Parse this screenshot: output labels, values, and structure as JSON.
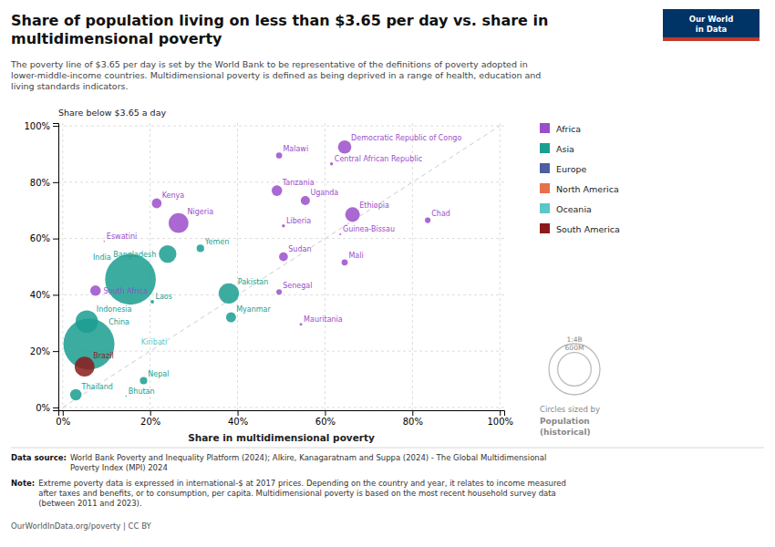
{
  "chart_data": {
    "type": "scatter",
    "title": "Share of population living on less than $3.65 per day vs. share in\nmultidimensional poverty",
    "subtitle": "The poverty line of $3.65 per day is set by the World Bank to be representative of the definitions of poverty adopted in\nlower-middle-income countries. Multidimensional poverty is defined as being deprived in a range of health, education and\nliving standards indicators.",
    "xlabel": "Share in multidimensional poverty",
    "ylabel": "Share below $3.65 a day",
    "xlim": [
      -0.01,
      1.01
    ],
    "ylim": [
      -0.01,
      1.01
    ],
    "xticks": [
      {
        "value": 0,
        "label": "0%"
      },
      {
        "value": 0.2,
        "label": "20%"
      },
      {
        "value": 0.4,
        "label": "40%"
      },
      {
        "value": 0.6,
        "label": "60%"
      },
      {
        "value": 0.8,
        "label": "80%"
      },
      {
        "value": 1,
        "label": "100%"
      }
    ],
    "yticks": [
      {
        "value": 0,
        "label": "0%"
      },
      {
        "value": 0.2,
        "label": "20%"
      },
      {
        "value": 0.4,
        "label": "40%"
      },
      {
        "value": 0.6,
        "label": "60%"
      },
      {
        "value": 0.8,
        "label": "80%"
      },
      {
        "value": 1,
        "label": "100%"
      }
    ],
    "grid": true,
    "legend": "right",
    "series": [
      {
        "name": "Africa",
        "color": "#9b4dca",
        "labels": [
          "Democratic Republic of Congo",
          "Central African Republic",
          "Malawi",
          "Tanzania",
          "Uganda",
          "Ethiopia",
          "Chad",
          "Kenya",
          "Nigeria",
          "Liberia",
          "Guinea-Bissau",
          "Sudan",
          "Mali",
          "Eswatini",
          "Senegal",
          "Mauritania",
          "South Africa"
        ],
        "x": [
          0.645,
          0.615,
          0.495,
          0.49,
          0.555,
          0.663,
          0.835,
          0.215,
          0.265,
          0.505,
          0.635,
          0.505,
          0.645,
          0.095,
          0.495,
          0.545,
          0.075
        ],
        "y": [
          0.925,
          0.865,
          0.895,
          0.77,
          0.735,
          0.685,
          0.665,
          0.725,
          0.655,
          0.645,
          0.615,
          0.535,
          0.515,
          0.59,
          0.41,
          0.295,
          0.415
        ],
        "size": [
          95,
          5,
          20,
          60,
          45,
          115,
          17,
          52,
          210,
          5,
          2,
          42,
          21,
          1,
          16,
          4,
          60
        ]
      },
      {
        "name": "Asia",
        "color": "#1a9e8f",
        "labels": [
          "India",
          "Bangladesh",
          "Pakistan",
          "Myanmar",
          "Yemen",
          "Laos",
          "Nepal",
          "Bhutan",
          "Indonesia",
          "China",
          "Thailand"
        ],
        "x": [
          0.155,
          0.24,
          0.38,
          0.385,
          0.315,
          0.205,
          0.185,
          0.145,
          0.055,
          0.06,
          0.03
        ],
        "y": [
          0.455,
          0.545,
          0.405,
          0.32,
          0.565,
          0.375,
          0.095,
          0.04,
          0.305,
          0.225,
          0.045
        ],
        "size": [
          1380,
          165,
          220,
          54,
          30,
          7,
          29,
          1,
          270,
          1400,
          70
        ]
      },
      {
        "name": "Europe",
        "color": "#4c5fa0",
        "labels": [],
        "x": [],
        "y": [],
        "size": []
      },
      {
        "name": "North America",
        "color": "#e8704a",
        "labels": [],
        "x": [],
        "y": [],
        "size": []
      },
      {
        "name": "Oceania",
        "color": "#5bc8c8",
        "labels": [
          "Kiribati"
        ],
        "x": [
          0.175
        ],
        "y": [
          0.215
        ],
        "size": [
          0.12
        ]
      },
      {
        "name": "South America",
        "color": "#8b1a1a",
        "labels": [
          "Brazil"
        ],
        "x": [
          0.05
        ],
        "y": [
          0.145
        ],
        "size": [
          210
        ]
      }
    ],
    "reference_line": {
      "x": [
        0,
        1
      ],
      "y": [
        0,
        1
      ],
      "color": "#cccccc",
      "line_style": "dashed"
    },
    "size_legend": {
      "title": "Circles sized by",
      "label": "Population",
      "note": "(historical)",
      "values": [
        1400,
        600
      ],
      "value_labels": [
        "1:4B",
        "600M"
      ]
    },
    "logo": [
      "Our World",
      "in Data"
    ],
    "source_label": "Data source:",
    "source": "World Bank Poverty and Inequality Platform (2024); Alkire, Kanagaratnam and Suppa (2024) - The Global Multidimensional\nPoverty Index (MPI) 2024",
    "note_label": "Note:",
    "note": "Extreme poverty data is expressed in international-$ at 2017 prices. Depending on the country and year, it relates to income measured\nafter taxes and benefits, or to consumption, per capita. Multidimensional poverty is based on the most recent household survey data\n(between 2011 and 2023).",
    "footer": "OurWorldInData.org/poverty | CC BY"
  }
}
